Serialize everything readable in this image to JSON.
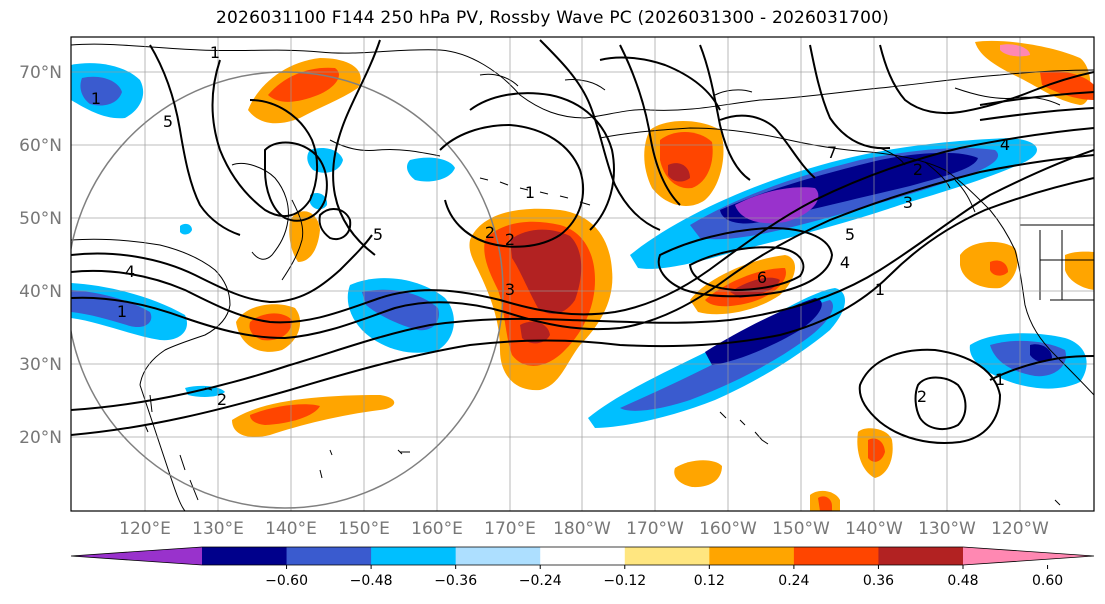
{
  "title": "2026031100 F144 250 hPa PV, Rossby Wave PC (2026031300 - 2026031700)",
  "lat_labels": [
    "70°N",
    "60°N",
    "50°N",
    "40°N",
    "30°N",
    "20°N"
  ],
  "lon_labels": [
    "120°E",
    "130°E",
    "140°E",
    "150°E",
    "160°E",
    "170°E",
    "180°W",
    "170°W",
    "160°W",
    "150°W",
    "140°W",
    "130°W",
    "120°W"
  ],
  "colorbar": {
    "ticks": [
      "−0.60",
      "−0.48",
      "−0.36",
      "−0.24",
      "−0.12",
      "0.12",
      "0.24",
      "0.36",
      "0.48",
      "0.60"
    ],
    "colors": [
      "#9932CC",
      "#00008B",
      "#3A5BCF",
      "#00BFFF",
      "#ADDFFF",
      "#FFFFFF",
      "#FFE680",
      "#FFA500",
      "#FF4500",
      "#B22222",
      "#FF88B2"
    ]
  },
  "contour_labels": [
    "4",
    "1",
    "2",
    "5",
    "1",
    "2",
    "1",
    "3",
    "2",
    "4",
    "5",
    "6",
    "7",
    "1",
    "2",
    "3",
    "4",
    "5",
    "1",
    "2",
    "1"
  ]
}
